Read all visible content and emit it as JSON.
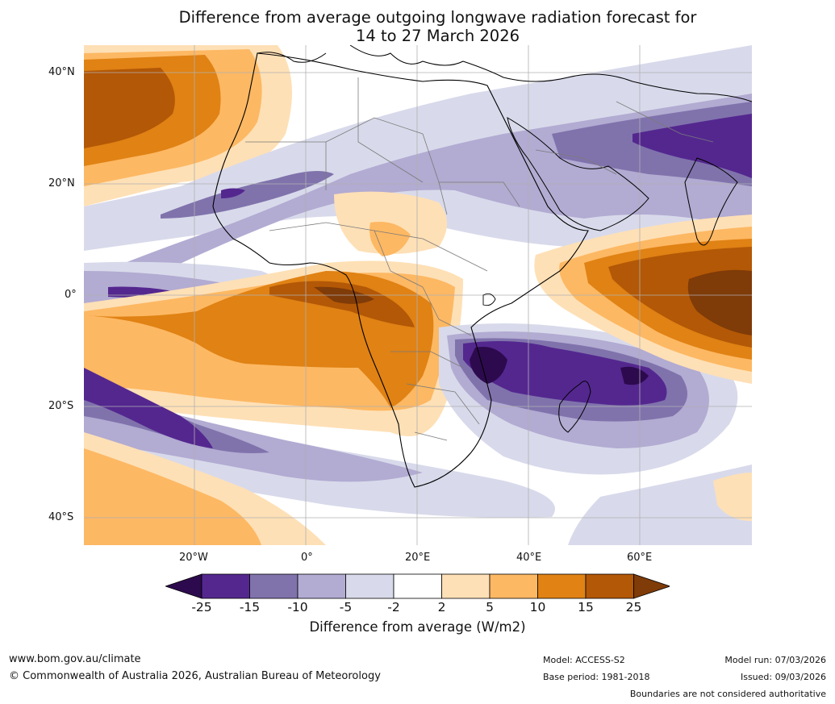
{
  "title": {
    "line1": "Difference from average outgoing longwave radiation forecast for",
    "line2": "14 to 27 March 2026"
  },
  "map": {
    "lat_labels": [
      "40°N",
      "20°N",
      "0°",
      "20°S",
      "40°S"
    ],
    "lon_labels": [
      "20°W",
      "0°",
      "20°E",
      "40°E",
      "60°E"
    ]
  },
  "legend": {
    "title": "Difference from average (W/m2)",
    "ticks": [
      "-25",
      "-15",
      "-10",
      "-5",
      "-2",
      "2",
      "5",
      "10",
      "15",
      "25"
    ],
    "colors": [
      "#2d0a4e",
      "#54278f",
      "#8073ac",
      "#b2abd2",
      "#d8daeb",
      "#ffffff",
      "#fee0b6",
      "#fdb863",
      "#e08214",
      "#b35806",
      "#7f3b08"
    ]
  },
  "footer": {
    "website": "www.bom.gov.au/climate",
    "copyright": "© Commonwealth of Australia 2026, Australian Bureau of Meteorology",
    "model": "Model: ACCESS-S2",
    "base_period": "Base period: 1981-2018",
    "model_run": "Model run: 07/03/2026",
    "issued": "Issued: 09/03/2026",
    "disclaimer": "Boundaries are not considered authoritative"
  }
}
